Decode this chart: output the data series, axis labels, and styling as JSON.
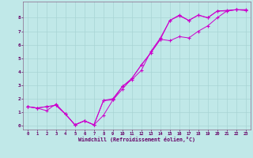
{
  "xlabel": "Windchill (Refroidissement éolien,°C)",
  "xlim": [
    -0.5,
    23.5
  ],
  "ylim": [
    -0.3,
    9.2
  ],
  "xticks": [
    0,
    1,
    2,
    3,
    4,
    5,
    6,
    7,
    8,
    9,
    10,
    11,
    12,
    13,
    14,
    15,
    16,
    17,
    18,
    19,
    20,
    21,
    22,
    23
  ],
  "yticks": [
    0,
    1,
    2,
    3,
    4,
    5,
    6,
    7,
    8
  ],
  "bg_color": "#c0e8e8",
  "grid_color": "#a8d4d4",
  "line_color": "#cc00cc",
  "spine_color": "#886688",
  "tick_color": "#660066",
  "line1_x": [
    0,
    1,
    2,
    3,
    4,
    5,
    6,
    7,
    8,
    9,
    10,
    11,
    12,
    13,
    14,
    15,
    16,
    17,
    18,
    19,
    20,
    21,
    22,
    23
  ],
  "line1_y": [
    1.4,
    1.3,
    1.4,
    1.5,
    0.85,
    0.05,
    0.35,
    0.05,
    0.75,
    1.9,
    2.7,
    3.5,
    4.5,
    5.4,
    6.4,
    7.8,
    8.2,
    7.8,
    8.2,
    8.0,
    8.5,
    8.5,
    8.6,
    8.6
  ],
  "line2_x": [
    0,
    1,
    2,
    3,
    4,
    5,
    6,
    7,
    8,
    9,
    10,
    11,
    12,
    13,
    14,
    15,
    16,
    17,
    18,
    19,
    20,
    21,
    22,
    23
  ],
  "line2_y": [
    1.4,
    1.3,
    1.4,
    1.5,
    0.85,
    0.05,
    0.35,
    0.05,
    1.85,
    2.0,
    2.9,
    3.4,
    4.1,
    5.5,
    6.5,
    7.8,
    8.15,
    7.8,
    8.2,
    8.0,
    8.5,
    8.55,
    8.6,
    8.55
  ],
  "line3_x": [
    0,
    1,
    2,
    3,
    4,
    5,
    6,
    7,
    8,
    9,
    10,
    11,
    12,
    13,
    14,
    15,
    16,
    17,
    18,
    19,
    20,
    21,
    22,
    23
  ],
  "line3_y": [
    1.4,
    1.3,
    1.1,
    1.6,
    0.85,
    0.05,
    0.35,
    0.05,
    1.85,
    1.9,
    2.9,
    3.5,
    4.5,
    5.4,
    6.4,
    6.3,
    6.6,
    6.5,
    7.0,
    7.4,
    8.0,
    8.5,
    8.6,
    8.55
  ]
}
